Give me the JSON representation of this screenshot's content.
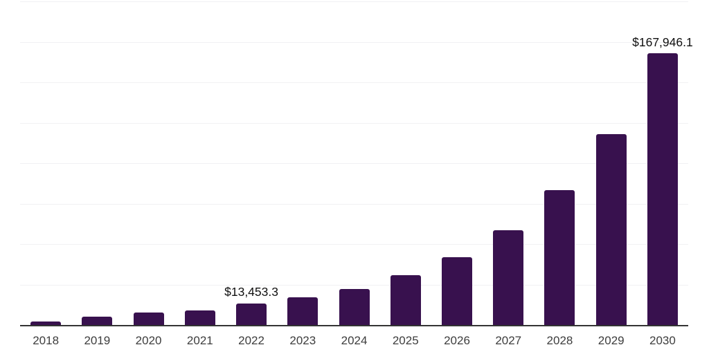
{
  "chart_data": {
    "type": "bar",
    "title": "",
    "xlabel": "",
    "ylabel": "",
    "categories": [
      "2018",
      "2019",
      "2020",
      "2021",
      "2022",
      "2023",
      "2024",
      "2025",
      "2026",
      "2027",
      "2028",
      "2029",
      "2030"
    ],
    "values": [
      2300,
      5100,
      7500,
      9100,
      13453.3,
      17100,
      22100,
      30600,
      42100,
      58600,
      83200,
      117900,
      167946.1
    ],
    "value_labels": [
      {
        "category": "2022",
        "text": "$13,453.3"
      },
      {
        "category": "2030",
        "text": "$167,946.1"
      }
    ],
    "ylim": [
      0,
      200000
    ],
    "ytick_interval": 25000,
    "y_axis_labels_shown": false,
    "grid": "horizontal",
    "gridline_count": 8,
    "legend": "none",
    "colors": {
      "bar": "#38114e",
      "gridline": "#f1f1f3",
      "axis_line": "#333333",
      "x_tick_label": "#3d3d3d",
      "value_label": "#101010",
      "background": "#ffffff"
    }
  }
}
